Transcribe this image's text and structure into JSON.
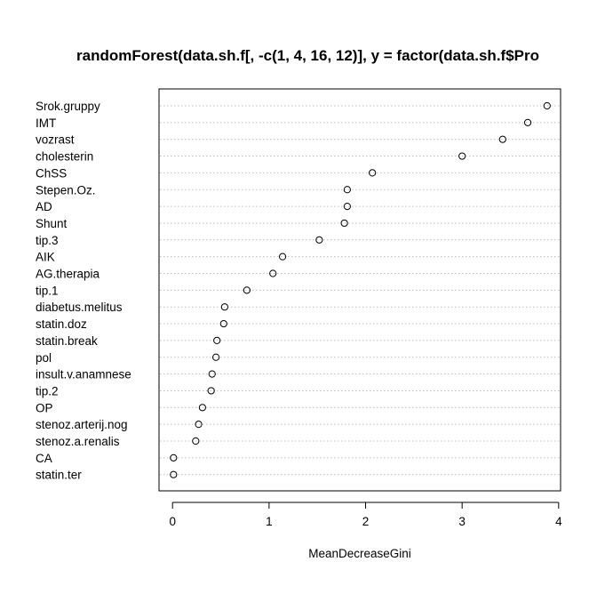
{
  "chart_data": {
    "type": "scatter",
    "title": "randomForest(data.sh.f[, -c(1, 4, 16, 12)], y = factor(data.sh.f$Pro",
    "xlabel": "MeanDecreaseGini",
    "ylabel": "",
    "xlim": [
      -0.14,
      4.02
    ],
    "xticks": [
      0,
      1,
      2,
      3,
      4
    ],
    "grid": "dotted-horizontal",
    "categories": [
      "Srok.gruppy",
      "IMT",
      "vozrast",
      "cholesterin",
      "ChSS",
      "Stepen.Oz.",
      "AD",
      "Shunt",
      "tip.3",
      "AIK",
      "AG.therapia",
      "tip.1",
      "diabetus.melitus",
      "statin.doz",
      "statin.break",
      "pol",
      "insult.v.anamnese",
      "tip.2",
      "OP",
      "stenoz.arterij.nog",
      "stenoz.a.renalis",
      "CA",
      "statin.ter"
    ],
    "values": [
      3.88,
      3.68,
      3.42,
      3.0,
      2.07,
      1.81,
      1.81,
      1.78,
      1.52,
      1.14,
      1.04,
      0.77,
      0.54,
      0.53,
      0.46,
      0.45,
      0.41,
      0.4,
      0.31,
      0.27,
      0.24,
      0.01,
      0.01
    ]
  }
}
